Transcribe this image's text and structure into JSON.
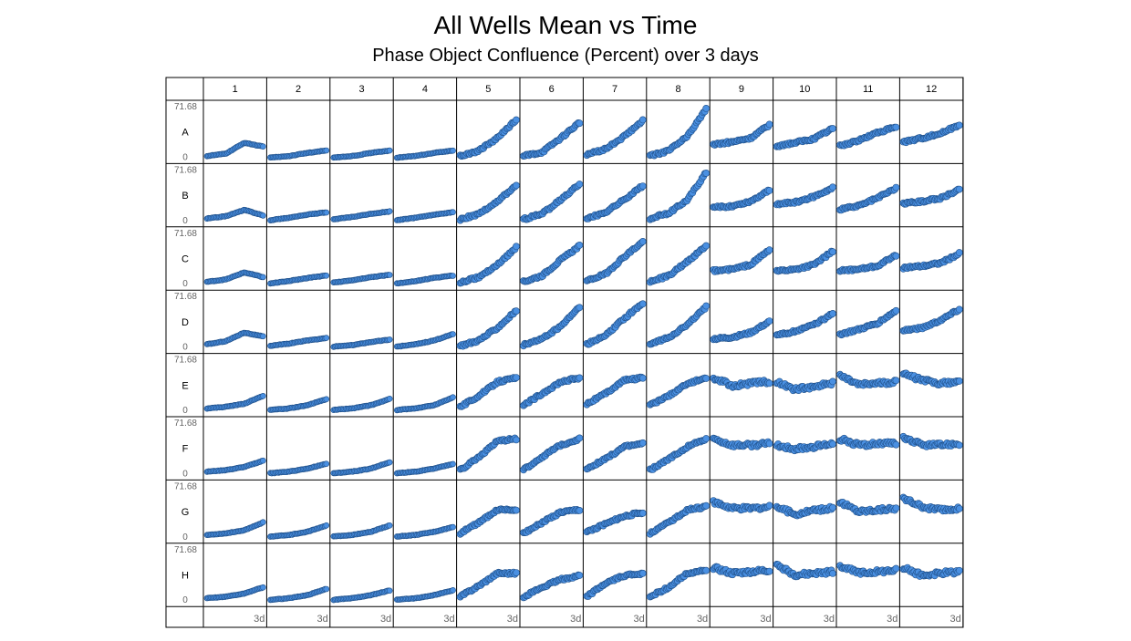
{
  "chart_data": {
    "type": "scatter",
    "title": "All Wells Mean vs Time",
    "subtitle": "Phase Object Confluence (Percent) over 3 days",
    "rows": [
      "A",
      "B",
      "C",
      "D",
      "E",
      "F",
      "G",
      "H"
    ],
    "columns": [
      "1",
      "2",
      "3",
      "4",
      "5",
      "6",
      "7",
      "8",
      "9",
      "10",
      "11",
      "12"
    ],
    "y_max_label": "71.68",
    "y_min_label": "0",
    "ylim": [
      0,
      71.68
    ],
    "x_tick_label": "3d",
    "xlim_days": [
      0,
      3
    ],
    "point_color": "#4a90e2",
    "point_stroke": "#1f4f88",
    "wells": {
      "A": [
        [
          5,
          8,
          22,
          17
        ],
        [
          3,
          5,
          9,
          12
        ],
        [
          3,
          5,
          9,
          12
        ],
        [
          3,
          5,
          9,
          12
        ],
        [
          5,
          12,
          28,
          52
        ],
        [
          5,
          10,
          28,
          48
        ],
        [
          7,
          14,
          30,
          50
        ],
        [
          5,
          12,
          30,
          65
        ],
        [
          20,
          23,
          28,
          45
        ],
        [
          18,
          22,
          27,
          40
        ],
        [
          18,
          25,
          35,
          42
        ],
        [
          23,
          28,
          34,
          45
        ]
      ],
      "B": [
        [
          6,
          9,
          17,
          10
        ],
        [
          4,
          7,
          11,
          14
        ],
        [
          5,
          8,
          12,
          15
        ],
        [
          4,
          7,
          11,
          14
        ],
        [
          5,
          12,
          28,
          48
        ],
        [
          5,
          12,
          30,
          50
        ],
        [
          6,
          14,
          30,
          48
        ],
        [
          6,
          13,
          30,
          65
        ],
        [
          20,
          22,
          28,
          43
        ],
        [
          24,
          27,
          34,
          45
        ],
        [
          18,
          22,
          32,
          45
        ],
        [
          25,
          28,
          32,
          43
        ]
      ],
      "C": [
        [
          6,
          9,
          18,
          12
        ],
        [
          4,
          7,
          11,
          14
        ],
        [
          5,
          8,
          12,
          15
        ],
        [
          4,
          7,
          11,
          14
        ],
        [
          5,
          12,
          28,
          50
        ],
        [
          6,
          14,
          34,
          52
        ],
        [
          7,
          16,
          38,
          57
        ],
        [
          6,
          14,
          32,
          52
        ],
        [
          20,
          22,
          28,
          47
        ],
        [
          20,
          22,
          28,
          45
        ],
        [
          20,
          22,
          26,
          40
        ],
        [
          24,
          26,
          30,
          42
        ]
      ],
      "D": [
        [
          7,
          11,
          22,
          17
        ],
        [
          5,
          8,
          12,
          15
        ],
        [
          4,
          6,
          10,
          13
        ],
        [
          4,
          7,
          12,
          20
        ],
        [
          5,
          12,
          28,
          50
        ],
        [
          6,
          14,
          30,
          55
        ],
        [
          7,
          18,
          40,
          60
        ],
        [
          7,
          16,
          32,
          55
        ],
        [
          14,
          16,
          22,
          36
        ],
        [
          18,
          24,
          32,
          46
        ],
        [
          20,
          26,
          34,
          50
        ],
        [
          25,
          28,
          38,
          52
        ]
      ],
      "E": [
        [
          6,
          8,
          12,
          22
        ],
        [
          4,
          6,
          10,
          18
        ],
        [
          4,
          6,
          10,
          18
        ],
        [
          4,
          6,
          10,
          20
        ],
        [
          8,
          22,
          40,
          45
        ],
        [
          10,
          25,
          40,
          45
        ],
        [
          12,
          25,
          42,
          45
        ],
        [
          10,
          22,
          38,
          45
        ],
        [
          45,
          35,
          38,
          40
        ],
        [
          40,
          30,
          34,
          38
        ],
        [
          48,
          36,
          38,
          40
        ],
        [
          50,
          42,
          38,
          40
        ]
      ],
      "F": [
        [
          6,
          8,
          12,
          20
        ],
        [
          4,
          6,
          10,
          16
        ],
        [
          4,
          6,
          10,
          18
        ],
        [
          4,
          6,
          10,
          16
        ],
        [
          8,
          25,
          45,
          48
        ],
        [
          8,
          25,
          40,
          48
        ],
        [
          10,
          22,
          38,
          42
        ],
        [
          8,
          22,
          38,
          48
        ],
        [
          48,
          40,
          40,
          42
        ],
        [
          40,
          35,
          38,
          42
        ],
        [
          48,
          40,
          42,
          42
        ],
        [
          50,
          40,
          40,
          42
        ]
      ],
      "G": [
        [
          6,
          8,
          12,
          22
        ],
        [
          4,
          6,
          10,
          18
        ],
        [
          4,
          6,
          10,
          18
        ],
        [
          4,
          6,
          10,
          16
        ],
        [
          8,
          22,
          38,
          38
        ],
        [
          8,
          22,
          35,
          38
        ],
        [
          10,
          20,
          30,
          35
        ],
        [
          8,
          22,
          38,
          42
        ],
        [
          48,
          40,
          40,
          42
        ],
        [
          42,
          32,
          38,
          40
        ],
        [
          48,
          36,
          38,
          40
        ],
        [
          52,
          42,
          38,
          40
        ]
      ],
      "H": [
        [
          6,
          8,
          12,
          20
        ],
        [
          4,
          6,
          10,
          18
        ],
        [
          4,
          6,
          10,
          16
        ],
        [
          4,
          6,
          10,
          16
        ],
        [
          8,
          22,
          38,
          38
        ],
        [
          8,
          20,
          30,
          35
        ],
        [
          8,
          25,
          35,
          38
        ],
        [
          8,
          20,
          38,
          42
        ],
        [
          45,
          38,
          40,
          42
        ],
        [
          48,
          36,
          38,
          40
        ],
        [
          48,
          38,
          40,
          42
        ],
        [
          45,
          35,
          38,
          40
        ]
      ]
    }
  }
}
